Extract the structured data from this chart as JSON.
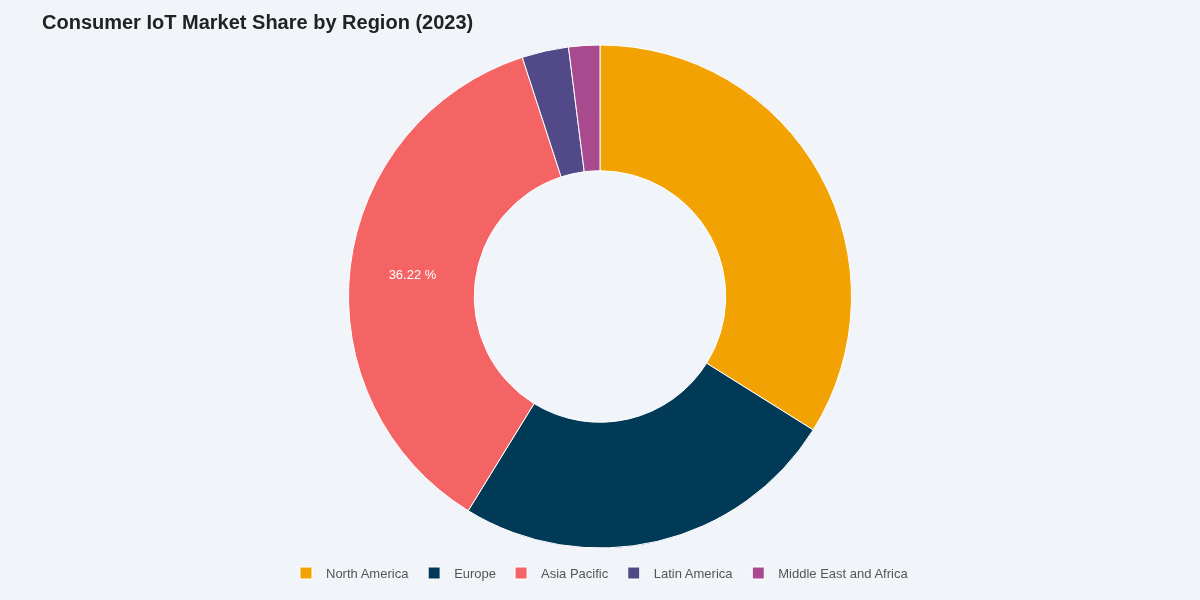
{
  "chart_data": {
    "type": "donut",
    "title": "Consumer IoT Market Share by Region (2023)",
    "categories": [
      "North America",
      "Europe",
      "Asia Pacific",
      "Latin America",
      "Middle East and Africa"
    ],
    "values": [
      33.9,
      24.88,
      36.22,
      3.0,
      2.0
    ],
    "colors": [
      "#f2a202",
      "#003a56",
      "#f56464",
      "#514988",
      "#a94a8e"
    ],
    "value_labels": [
      null,
      null,
      "36.22 %",
      null,
      null
    ],
    "legend": "bottom"
  }
}
